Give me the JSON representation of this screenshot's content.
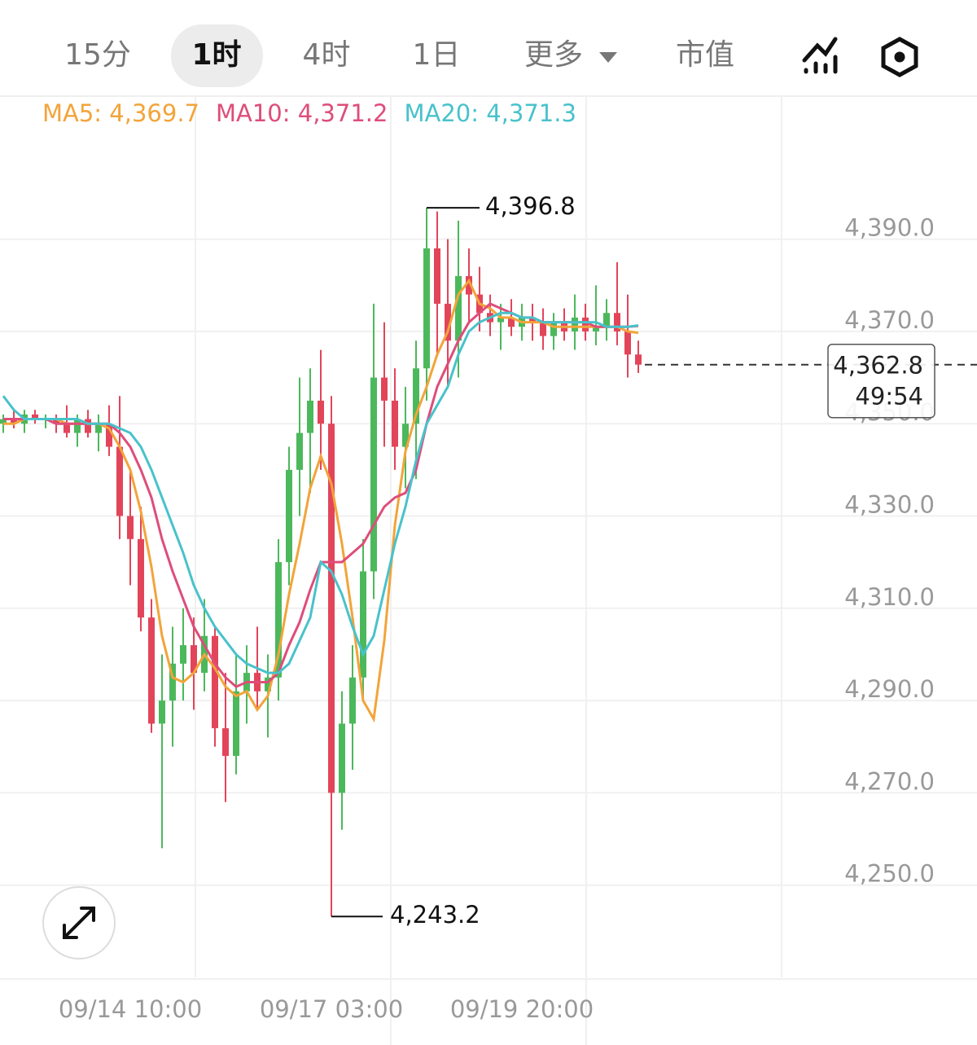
{
  "toolbar": {
    "tabs": [
      "15分",
      "1时",
      "4时",
      "1日",
      "更多",
      "市值"
    ],
    "selected": 1
  },
  "chart_data": {
    "type": "candlestick",
    "categories": [
      null,
      null,
      null,
      null,
      null,
      null,
      null,
      null,
      null,
      null,
      null,
      null,
      "09/14 10:00",
      null,
      null,
      null,
      null,
      null,
      null,
      null,
      null,
      null,
      null,
      null,
      null,
      null,
      null,
      null,
      null,
      null,
      null,
      "09/17 03:00",
      null,
      null,
      null,
      null,
      null,
      null,
      null,
      null,
      null,
      null,
      null,
      null,
      null,
      null,
      null,
      null,
      null,
      "09/19 20:00",
      null,
      null,
      null,
      null,
      null,
      null,
      null,
      null,
      null,
      null,
      null
    ],
    "up_color": "#4cb85c",
    "down_color": "#e2455a",
    "candles": [
      [
        4350,
        4352,
        4348,
        4351
      ],
      [
        4351,
        4353,
        4349,
        4350
      ],
      [
        4350,
        4353,
        4348,
        4352
      ],
      [
        4352,
        4353,
        4350,
        4351
      ],
      [
        4351,
        4352,
        4349,
        4351
      ],
      [
        4351,
        4352,
        4348,
        4350
      ],
      [
        4350,
        4354,
        4347,
        4348
      ],
      [
        4348,
        4352,
        4345,
        4351
      ],
      [
        4351,
        4353,
        4347,
        4348
      ],
      [
        4348,
        4352,
        4344,
        4350
      ],
      [
        4350,
        4354,
        4343,
        4345
      ],
      [
        4345,
        4356,
        4325,
        4330
      ],
      [
        4330,
        4340,
        4315,
        4325
      ],
      [
        4325,
        4332,
        4305,
        4308
      ],
      [
        4308,
        4312,
        4283,
        4285
      ],
      [
        4285,
        4300,
        4258,
        4290
      ],
      [
        4290,
        4306,
        4280,
        4298
      ],
      [
        4298,
        4310,
        4290,
        4302
      ],
      [
        4302,
        4308,
        4288,
        4296
      ],
      [
        4296,
        4312,
        4292,
        4304
      ],
      [
        4304,
        4306,
        4280,
        4284
      ],
      [
        4284,
        4296,
        4268,
        4278
      ],
      [
        4278,
        4300,
        4274,
        4292
      ],
      [
        4292,
        4302,
        4285,
        4296
      ],
      [
        4296,
        4306,
        4288,
        4292
      ],
      [
        4292,
        4300,
        4282,
        4295
      ],
      [
        4295,
        4325,
        4290,
        4320
      ],
      [
        4320,
        4345,
        4315,
        4340
      ],
      [
        4340,
        4360,
        4330,
        4348
      ],
      [
        4348,
        4362,
        4335,
        4355
      ],
      [
        4355,
        4366,
        4340,
        4350
      ],
      [
        4350,
        4356,
        4243.2,
        4270
      ],
      [
        4270,
        4292,
        4262,
        4285
      ],
      [
        4285,
        4302,
        4275,
        4295
      ],
      [
        4295,
        4325,
        4290,
        4318
      ],
      [
        4318,
        4376,
        4312,
        4360
      ],
      [
        4360,
        4372,
        4345,
        4355
      ],
      [
        4355,
        4362,
        4340,
        4345
      ],
      [
        4345,
        4358,
        4336,
        4350
      ],
      [
        4350,
        4368,
        4338,
        4362
      ],
      [
        4362,
        4396.8,
        4355,
        4388
      ],
      [
        4388,
        4396,
        4365,
        4376
      ],
      [
        4376,
        4390,
        4358,
        4368
      ],
      [
        4368,
        4394,
        4360,
        4382
      ],
      [
        4382,
        4388,
        4372,
        4378
      ],
      [
        4378,
        4384,
        4370,
        4374
      ],
      [
        4374,
        4378,
        4369,
        4372
      ],
      [
        4372,
        4376,
        4366,
        4373
      ],
      [
        4373,
        4377,
        4369,
        4371
      ],
      [
        4371,
        4376,
        4368,
        4373
      ],
      [
        4373,
        4376,
        4368,
        4372
      ],
      [
        4372,
        4375,
        4366,
        4369
      ],
      [
        4369,
        4374,
        4366,
        4372
      ],
      [
        4372,
        4375,
        4368,
        4370
      ],
      [
        4370,
        4378,
        4366,
        4373
      ],
      [
        4373,
        4376,
        4368,
        4370
      ],
      [
        4370,
        4380,
        4367,
        4371
      ],
      [
        4371,
        4377,
        4368,
        4374
      ],
      [
        4374,
        4385,
        4367,
        4370
      ],
      [
        4370,
        4378,
        4360,
        4365
      ],
      [
        4365,
        4368,
        4361,
        4362.8
      ]
    ],
    "series": [
      {
        "name": "MA5: 4,369.7",
        "color": "#f2a43a",
        "values": [
          4350,
          4350,
          4351,
          4351,
          4351,
          4351,
          4350,
          4350,
          4350,
          4350,
          4349,
          4345,
          4340,
          4331,
          4319,
          4304,
          4295,
          4294,
          4296,
          4300,
          4297,
          4293,
          4291,
          4292,
          4288,
          4291,
          4300,
          4313,
          4324,
          4336,
          4343,
          4337,
          4324,
          4308,
          4290,
          4286,
          4303,
          4328,
          4344,
          4352,
          4358,
          4365,
          4370,
          4378,
          4381,
          4376,
          4375,
          4373,
          4373,
          4372,
          4372,
          4372,
          4371,
          4371,
          4371,
          4371,
          4371,
          4371,
          4371,
          4370,
          4369.7
        ]
      },
      {
        "name": "MA10: 4,371.2",
        "color": "#de4d7a",
        "values": [
          4351,
          4351,
          4351,
          4351,
          4351,
          4350,
          4350,
          4350,
          4350,
          4350,
          4350,
          4348,
          4345,
          4340,
          4334,
          4325,
          4318,
          4312,
          4306,
          4302,
          4298,
          4295,
          4293,
          4294,
          4294,
          4294,
          4296,
          4302,
          4307,
          4314,
          4320,
          4320,
          4320,
          4322,
          4324,
          4328,
          4332,
          4334,
          4335,
          4340,
          4350,
          4358,
          4363,
          4368,
          4372,
          4374,
          4376,
          4375,
          4374,
          4373,
          4373,
          4372,
          4372,
          4372,
          4372,
          4372,
          4371,
          4371,
          4371,
          4371,
          4371.2
        ]
      },
      {
        "name": "MA20: 4,371.3",
        "color": "#48c2cb",
        "values": [
          4356,
          4353,
          4351,
          4351,
          4351,
          4351,
          4351,
          4351,
          4350,
          4350,
          4350,
          4349,
          4348,
          4345,
          4340,
          4334,
          4328,
          4322,
          4315,
          4310,
          4306,
          4303,
          4300,
          4298,
          4297,
          4296,
          4296,
          4298,
          4303,
          4308,
          4320,
          4318,
          4313,
          4306,
          4300,
          4304,
          4314,
          4324,
          4332,
          4342,
          4350,
          4354,
          4358,
          4365,
          4370,
          4372,
          4373,
          4374,
          4374,
          4373,
          4373,
          4372,
          4372,
          4372,
          4372,
          4372,
          4372,
          4371,
          4371,
          4371,
          4371.3
        ]
      }
    ],
    "high_label": {
      "value": 4396.8,
      "label": "4,396.8"
    },
    "low_label": {
      "value": 4243.2,
      "label": "4,243.2"
    },
    "last_price": {
      "value": 4362.8,
      "label": "4,362.8"
    },
    "countdown": "49:54",
    "ylim": [
      4230,
      4421
    ],
    "yticks": [
      {
        "value": 4250,
        "label": "4,250.0"
      },
      {
        "value": 4270,
        "label": "4,270.0"
      },
      {
        "value": 4290,
        "label": "4,290.0"
      },
      {
        "value": 4310,
        "label": "4,310.0"
      },
      {
        "value": 4330,
        "label": "4,330.0"
      },
      {
        "value": 4350,
        "label": "4,350.0"
      },
      {
        "value": 4370,
        "label": "4,370.0"
      },
      {
        "value": 4390,
        "label": "4,390.0"
      }
    ],
    "grid": true
  }
}
